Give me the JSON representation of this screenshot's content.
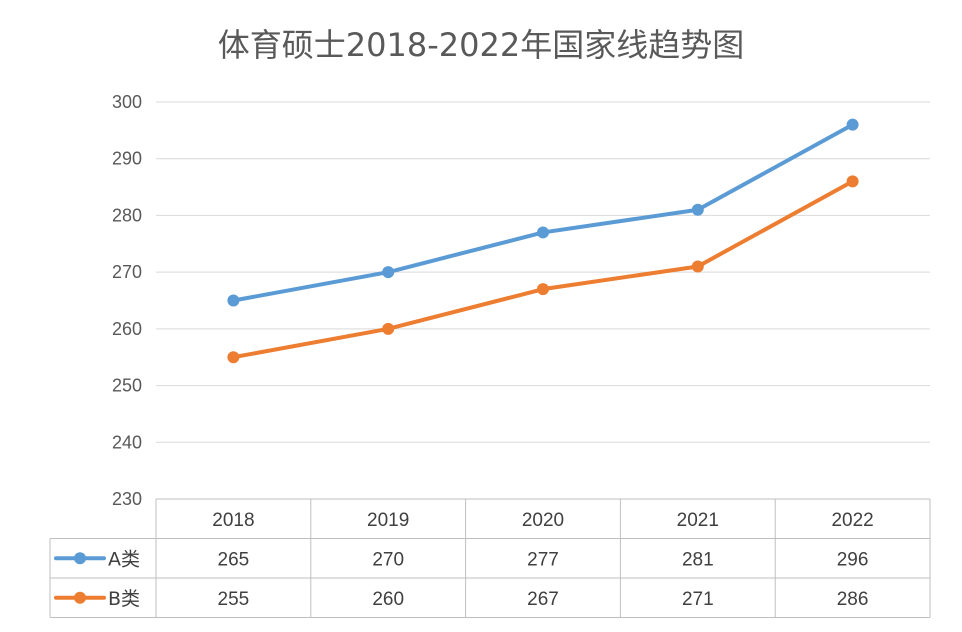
{
  "chart_data": {
    "type": "line",
    "title": "体育硕士2018-2022年国家线趋势图",
    "categories": [
      "2018",
      "2019",
      "2020",
      "2021",
      "2022"
    ],
    "series": [
      {
        "name": "A类",
        "values": [
          265,
          270,
          277,
          281,
          296
        ],
        "color": "#5b9bd5"
      },
      {
        "name": "B类",
        "values": [
          255,
          260,
          267,
          271,
          286
        ],
        "color": "#ed7d31"
      }
    ],
    "ylim": [
      230,
      300
    ],
    "yticks": [
      230,
      240,
      250,
      260,
      270,
      280,
      290,
      300
    ],
    "grid": true,
    "legend": "data-table",
    "data_table": true
  }
}
